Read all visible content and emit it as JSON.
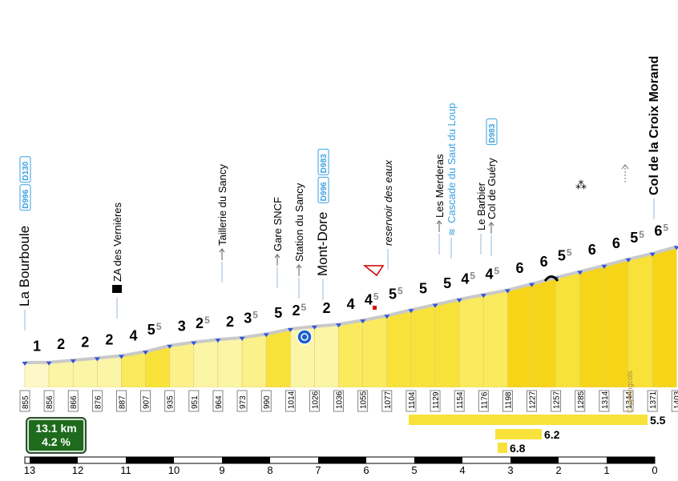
{
  "chart_data": {
    "type": "area",
    "title": "Col de la Croix Morand",
    "summary": {
      "distance": "13.1 km",
      "avg_gradient": "4.2 %"
    },
    "credit": "© cyclingcols",
    "x_axis": {
      "labels": [
        "13",
        "12",
        "11",
        "10",
        "9",
        "8",
        "7",
        "6",
        "5",
        "4",
        "3",
        "2",
        "1",
        "0"
      ],
      "xlim": [
        13.1,
        0
      ]
    },
    "segments": [
      {
        "alt": 855,
        "grad": "1"
      },
      {
        "alt": 856,
        "grad": "2"
      },
      {
        "alt": 866,
        "grad": "2"
      },
      {
        "alt": 876,
        "grad": "2"
      },
      {
        "alt": 887,
        "grad": "4"
      },
      {
        "alt": 907,
        "grad": "5",
        "sup": "5"
      },
      {
        "alt": 935,
        "grad": "3"
      },
      {
        "alt": 951,
        "grad": "2",
        "sup": "5"
      },
      {
        "alt": 964,
        "grad": "2"
      },
      {
        "alt": 973,
        "grad": "3",
        "sup": "5"
      },
      {
        "alt": 990,
        "grad": "5"
      },
      {
        "alt": 1014,
        "grad": "2",
        "sup": "5"
      },
      {
        "alt": 1026,
        "grad": "2"
      },
      {
        "alt": 1036,
        "grad": "4"
      },
      {
        "alt": 1055,
        "grad": "4",
        "sup": "5"
      },
      {
        "alt": 1077,
        "grad": "5",
        "sup": "5"
      },
      {
        "alt": 1104,
        "grad": "5"
      },
      {
        "alt": 1129,
        "grad": "5"
      },
      {
        "alt": 1154,
        "grad": "4",
        "sup": "5"
      },
      {
        "alt": 1176,
        "grad": "4",
        "sup": "5"
      },
      {
        "alt": 1198,
        "grad": "6"
      },
      {
        "alt": 1227,
        "grad": "6"
      },
      {
        "alt": 1257,
        "grad": "5",
        "sup": "5"
      },
      {
        "alt": 1285,
        "grad": "6"
      },
      {
        "alt": 1314,
        "grad": "6"
      },
      {
        "alt": 1344,
        "grad": "5",
        "sup": "5"
      },
      {
        "alt": 1371,
        "grad": "6",
        "sup": "5"
      },
      {
        "alt": 1403
      }
    ],
    "places": [
      {
        "name": "La Bourboule",
        "roads": [
          "D996",
          "D130"
        ],
        "at": 0
      },
      {
        "name": "ZA des Vernières",
        "icon": "factory",
        "at": 4.1
      },
      {
        "name": "Taillerie du Sancy",
        "arrow": true,
        "at": 8.2
      },
      {
        "name": "Gare SNCF",
        "arrow": true,
        "at": 10.5
      },
      {
        "name": "Station du Sancy",
        "arrow": true,
        "at": 11.4
      },
      {
        "name": "Mont-Dore",
        "roads": [
          "D996",
          "D983"
        ],
        "at": 12.3
      },
      {
        "name": "reservoir des eaux",
        "italic": true,
        "at": 15.3
      },
      {
        "name": "Les Merderas",
        "arrow": true,
        "at": 17.4
      },
      {
        "name": "Cascade du Saut du Loup",
        "blue": true,
        "icon": "waterfall",
        "at": 17.9
      },
      {
        "name": "Le Barbier",
        "at": 19.0
      },
      {
        "name": "Col de Guéry",
        "roads": [
          "D983"
        ],
        "arrow": true,
        "at": 19.3
      },
      {
        "name": "Col de la Croix Morand",
        "bold": true,
        "at": 26.0
      }
    ],
    "climbs": [
      {
        "label": "5.5"
      },
      {
        "label": "6.2"
      },
      {
        "label": "6.8"
      }
    ],
    "colors": {
      "grad1": "#fdf8c7",
      "grad2": "#fbf5a8",
      "grad3": "#fbf08a",
      "grad4": "#f9ea5e",
      "grad5": "#f8e23a",
      "grad6": "#f6d418",
      "road_blue": "#3aa1e0",
      "summary_green": "#1e6b1e"
    }
  }
}
